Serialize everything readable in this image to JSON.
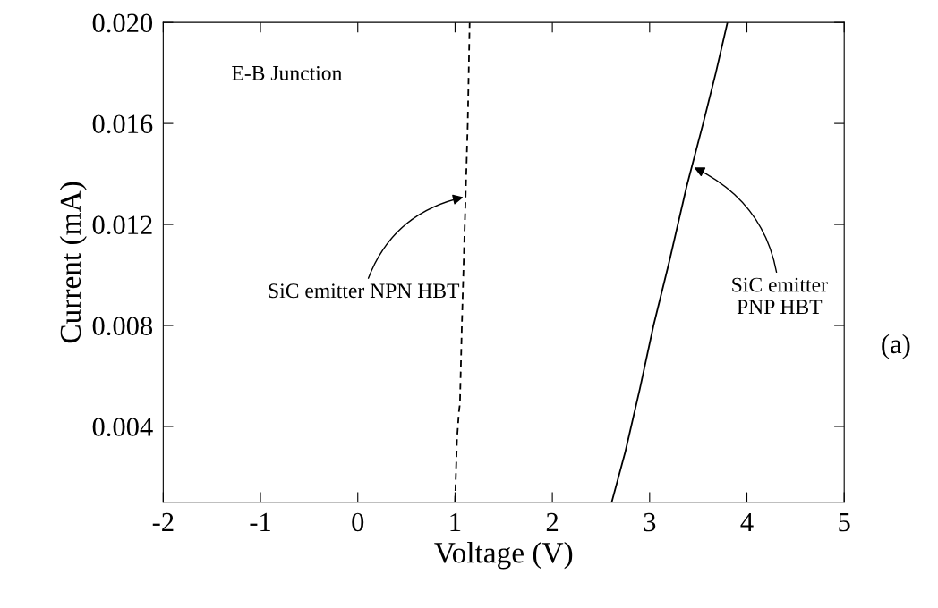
{
  "chart_data": {
    "type": "line",
    "xlabel": "Voltage (V)",
    "ylabel": "Current (mA)",
    "series": [
      {
        "color": "#000000",
        "line_style": "dashed",
        "x": [
          1.0,
          1.02,
          1.04,
          1.05,
          1.07,
          1.1,
          1.13,
          1.15
        ],
        "values": [
          0.001,
          0.0035,
          0.0046,
          0.0049,
          0.008,
          0.012,
          0.016,
          0.02
        ]
      },
      {
        "color": "#000000",
        "line_style": "solid",
        "x": [
          2.61,
          2.75,
          2.9,
          3.04,
          3.2,
          3.38,
          3.55,
          3.68,
          3.8
        ],
        "values": [
          0.001,
          0.003,
          0.0055,
          0.008,
          0.0105,
          0.0135,
          0.016,
          0.018,
          0.02
        ]
      }
    ],
    "xlim": [
      -2,
      5
    ],
    "xticks": [
      -2,
      -1,
      0,
      1,
      2,
      3,
      4,
      5
    ],
    "ylim": [
      0.001,
      0.02
    ],
    "yticks": [
      {
        "value": 0.004,
        "label": "0.004"
      },
      {
        "value": 0.008,
        "label": "0.008"
      },
      {
        "value": 0.012,
        "label": "0.012"
      },
      {
        "value": 0.016,
        "label": "0.016"
      },
      {
        "value": 0.02,
        "label": "0.020"
      }
    ],
    "annotations": [
      "E-B Junction",
      {
        "text": "SiC emitter NPN HBT",
        "x": 1.11,
        "y": 0.0131
      },
      {
        "text": "SiC emitter\nPNP HBT",
        "x": 3.434,
        "y": 0.0143
      },
      "(a)"
    ],
    "grid": false,
    "legend": false,
    "marker": "none"
  }
}
